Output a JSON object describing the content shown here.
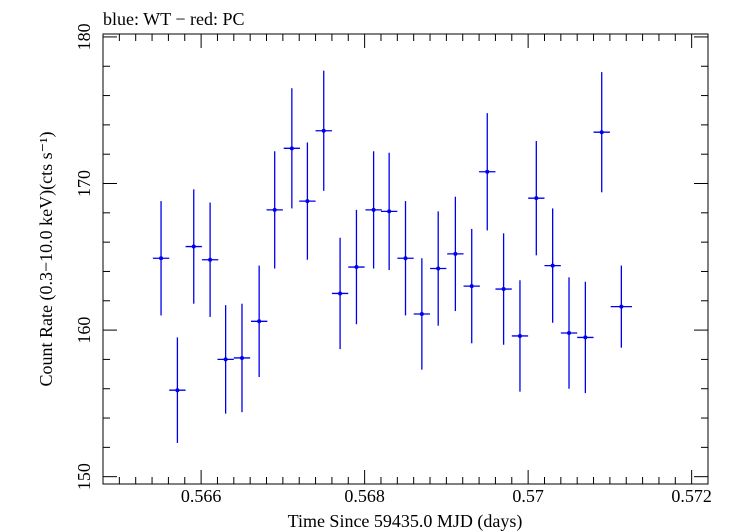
{
  "chart_data": {
    "type": "scatter",
    "title": "blue: WT − red: PC",
    "xlabel": "Time Since 59435.0 MJD (days)",
    "ylabel": "Count Rate (0.3−10.0 keV)(cts s⁻¹)",
    "xlim": [
      0.5648,
      0.5722
    ],
    "ylim": [
      149.5,
      180.2
    ],
    "x_ticks": [
      0.566,
      0.568,
      0.57,
      0.572
    ],
    "x_tick_labels": [
      "0.566",
      "0.568",
      "0.57",
      "0.572"
    ],
    "y_ticks": [
      150,
      160,
      170,
      180
    ],
    "y_tick_labels": [
      "150",
      "160",
      "170",
      "180"
    ],
    "x_minor_step": 0.0002,
    "y_minor_step": 2,
    "grid": false,
    "series": [
      {
        "color": "#0000ee",
        "points": [
          {
            "x": 0.56551,
            "xerr": 0.0001,
            "y": 164.9,
            "yerr": 3.9
          },
          {
            "x": 0.56571,
            "xerr": 0.0001,
            "y": 155.9,
            "yerr": 3.6
          },
          {
            "x": 0.56591,
            "xerr": 0.0001,
            "y": 165.7,
            "yerr": 3.9
          },
          {
            "x": 0.56611,
            "xerr": 0.0001,
            "y": 164.8,
            "yerr": 3.9
          },
          {
            "x": 0.5663,
            "xerr": 0.0001,
            "y": 158.0,
            "yerr": 3.7
          },
          {
            "x": 0.5665,
            "xerr": 0.0001,
            "y": 158.1,
            "yerr": 3.7
          },
          {
            "x": 0.56671,
            "xerr": 0.0001,
            "y": 160.6,
            "yerr": 3.8
          },
          {
            "x": 0.5669,
            "xerr": 0.0001,
            "y": 168.2,
            "yerr": 4.0
          },
          {
            "x": 0.56711,
            "xerr": 0.0001,
            "y": 172.4,
            "yerr": 4.1
          },
          {
            "x": 0.5673,
            "xerr": 0.0001,
            "y": 168.8,
            "yerr": 4.0
          },
          {
            "x": 0.5675,
            "xerr": 0.0001,
            "y": 173.6,
            "yerr": 4.1
          },
          {
            "x": 0.5677,
            "xerr": 0.0001,
            "y": 162.5,
            "yerr": 3.8
          },
          {
            "x": 0.5679,
            "xerr": 0.0001,
            "y": 164.3,
            "yerr": 3.9
          },
          {
            "x": 0.56811,
            "xerr": 0.0001,
            "y": 168.2,
            "yerr": 4.0
          },
          {
            "x": 0.5683,
            "xerr": 0.0001,
            "y": 168.1,
            "yerr": 4.0
          },
          {
            "x": 0.5685,
            "xerr": 0.0001,
            "y": 164.9,
            "yerr": 3.9
          },
          {
            "x": 0.5687,
            "xerr": 0.0001,
            "y": 161.1,
            "yerr": 3.8
          },
          {
            "x": 0.5689,
            "xerr": 0.0001,
            "y": 164.2,
            "yerr": 3.9
          },
          {
            "x": 0.56911,
            "xerr": 0.0001,
            "y": 165.2,
            "yerr": 3.9
          },
          {
            "x": 0.56931,
            "xerr": 0.0001,
            "y": 163.0,
            "yerr": 3.9
          },
          {
            "x": 0.5695,
            "xerr": 0.0001,
            "y": 170.8,
            "yerr": 4.0
          },
          {
            "x": 0.5697,
            "xerr": 0.0001,
            "y": 162.8,
            "yerr": 3.8
          },
          {
            "x": 0.5699,
            "xerr": 0.0001,
            "y": 159.6,
            "yerr": 3.8
          },
          {
            "x": 0.5701,
            "xerr": 0.0001,
            "y": 169.0,
            "yerr": 3.9
          },
          {
            "x": 0.5703,
            "xerr": 0.0001,
            "y": 164.4,
            "yerr": 3.9
          },
          {
            "x": 0.5705,
            "xerr": 0.0001,
            "y": 159.8,
            "yerr": 3.8
          },
          {
            "x": 0.5707,
            "xerr": 0.0001,
            "y": 159.5,
            "yerr": 3.8
          },
          {
            "x": 0.5709,
            "xerr": 0.0001,
            "y": 173.5,
            "yerr": 4.1
          },
          {
            "x": 0.57114,
            "xerr": 0.00013,
            "y": 161.6,
            "yerr": 2.8
          }
        ]
      }
    ]
  }
}
